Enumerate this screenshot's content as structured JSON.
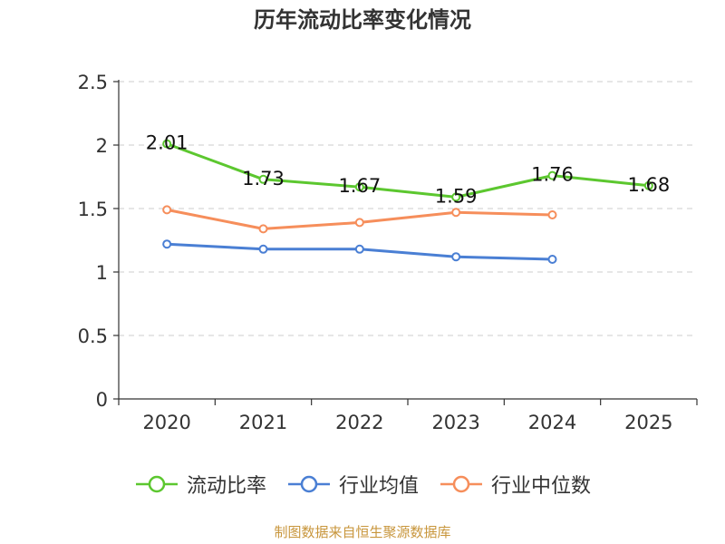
{
  "chart_data": {
    "type": "line",
    "title": "历年流动比率变化情况",
    "categories": [
      "2020",
      "2021",
      "2022",
      "2023",
      "2024",
      "2025"
    ],
    "yticks": [
      "0",
      "0.5",
      "1",
      "1.5",
      "2",
      "2.5"
    ],
    "ylim": [
      0,
      2.5
    ],
    "grid": true,
    "legend_position": "bottom",
    "series": [
      {
        "name": "流动比率",
        "color": "#5cc72f",
        "values": [
          2.01,
          1.73,
          1.67,
          1.59,
          1.76,
          1.68
        ],
        "labels": [
          "2.01",
          "1.73",
          "1.67",
          "1.59",
          "1.76",
          "1.68"
        ]
      },
      {
        "name": "行业均值",
        "color": "#4a7fd4",
        "values": [
          1.22,
          1.18,
          1.18,
          1.12,
          1.1,
          null
        ]
      },
      {
        "name": "行业中位数",
        "color": "#f68e5b",
        "values": [
          1.49,
          1.34,
          1.39,
          1.47,
          1.45,
          null
        ]
      }
    ]
  },
  "footer": {
    "source": "制图数据来自恒生聚源数据库"
  }
}
